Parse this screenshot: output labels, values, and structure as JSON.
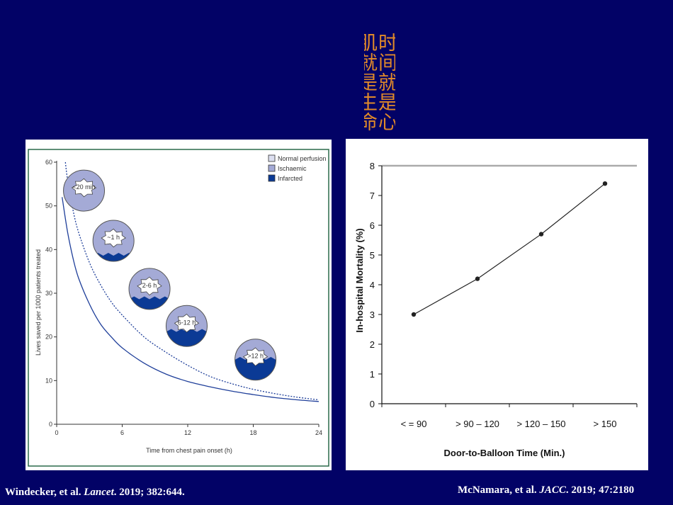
{
  "slide": {
    "title": "时间就是心肌就是生命",
    "background": "#020266",
    "title_color": "#e08a2a"
  },
  "citations": {
    "left": {
      "authors": "Windecker, et al. ",
      "journal": "Lancet",
      "rest": ". 2019; 382:644."
    },
    "right": {
      "authors": "McNamara, et al. ",
      "journal": "JACC",
      "rest": ". 2019; 47:2180"
    }
  },
  "chart_data": [
    {
      "type": "line",
      "xlabel": "Time from chest pain onset (h)",
      "ylabel": "Lives saved per 1000 patients treated",
      "xlim": [
        0,
        24
      ],
      "ylim": [
        0,
        60
      ],
      "x_ticks": [
        "0",
        "6",
        "12",
        "18",
        "24"
      ],
      "y_ticks": [
        "0",
        "10",
        "20",
        "30",
        "40",
        "50",
        "60"
      ],
      "legend": {
        "placement": "top-right",
        "items": [
          {
            "label": "Normal perfusion",
            "color": "#dcdff0"
          },
          {
            "label": "Ischaemic",
            "color": "#a4aad6"
          },
          {
            "label": "Infarcted",
            "color": "#0b3a95"
          }
        ]
      },
      "series": [
        {
          "name": "solid",
          "style": "solid",
          "color": "#1f3f9a",
          "x": [
            0.5,
            1,
            1.5,
            2,
            3,
            4,
            5,
            6,
            8,
            10,
            12,
            14,
            16,
            18,
            20,
            22,
            24
          ],
          "y": [
            52,
            44,
            38,
            33.5,
            27.5,
            23,
            20,
            17.5,
            14,
            11.5,
            9.8,
            8.6,
            7.6,
            6.8,
            6.1,
            5.6,
            5.2
          ]
        },
        {
          "name": "dotted",
          "style": "dotted",
          "color": "#1f3f9a",
          "x": [
            0.8,
            1,
            1.5,
            2,
            3,
            4,
            5,
            6,
            8,
            10,
            12,
            14,
            16,
            18,
            20,
            22,
            24
          ],
          "y": [
            60,
            56,
            49,
            44,
            37,
            32,
            28,
            25,
            20,
            16.5,
            13.5,
            11,
            9.3,
            8,
            7,
            6.2,
            5.6
          ]
        }
      ],
      "hearts": [
        {
          "label": "<20 min",
          "x": 2.5,
          "y": 53.5,
          "infarct": 0.0
        },
        {
          "label": "~1 h",
          "x": 5.2,
          "y": 42,
          "infarct": 0.25
        },
        {
          "label": "2-6 h",
          "x": 8.5,
          "y": 31,
          "infarct": 0.45
        },
        {
          "label": "6-12 h",
          "x": 11.9,
          "y": 22.5,
          "infarct": 0.65
        },
        {
          "label": ">12 h",
          "x": 18.2,
          "y": 14.8,
          "infarct": 0.9
        }
      ]
    },
    {
      "type": "line",
      "xlabel": "Door-to-Balloon Time (Min.)",
      "ylabel": "In-hospital Mortality (%)",
      "categories": [
        "< = 90",
        "> 90 – 120",
        "> 120 – 150",
        "> 150"
      ],
      "values": [
        3.0,
        4.2,
        5.7,
        7.4
      ],
      "ylim": [
        0,
        8
      ],
      "y_ticks": [
        "0",
        "1",
        "2",
        "3",
        "4",
        "5",
        "6",
        "7",
        "8"
      ]
    }
  ]
}
